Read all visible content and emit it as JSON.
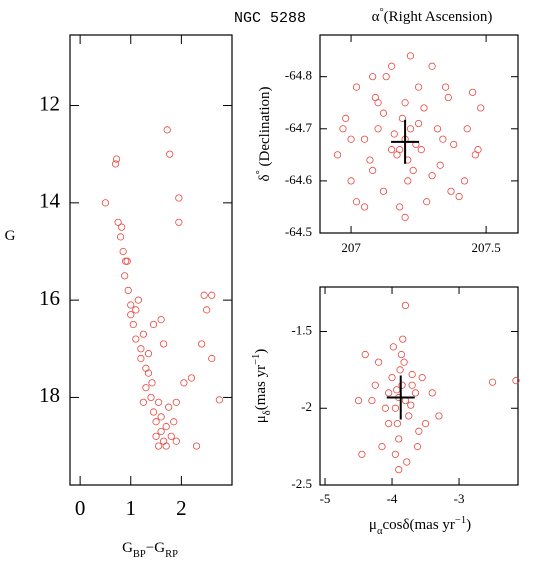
{
  "chart_data": [
    {
      "type": "scatter",
      "color": "#e8473f",
      "xlabel": [
        {
          "text": "G"
        },
        {
          "text": "BP",
          "shift": "sub"
        },
        {
          "text": "−G"
        },
        {
          "text": "RP",
          "shift": "sub"
        }
      ],
      "ylabel": [
        {
          "text": "G"
        }
      ],
      "xlim": [
        -0.2,
        3.0
      ],
      "ylim": [
        19.8,
        10.55
      ],
      "xticks": [
        0,
        1,
        2
      ],
      "yticks": [
        12,
        14,
        16,
        18
      ],
      "x": [
        0.5,
        0.7,
        0.72,
        0.75,
        0.8,
        0.82,
        0.85,
        0.88,
        0.9,
        0.93,
        0.95,
        1.0,
        1.0,
        1.05,
        1.1,
        1.1,
        1.15,
        1.2,
        1.2,
        1.25,
        1.3,
        1.3,
        1.35,
        1.4,
        1.42,
        1.45,
        1.5,
        1.5,
        1.55,
        1.55,
        1.6,
        1.6,
        1.65,
        1.7,
        1.7,
        1.75,
        1.8,
        1.85,
        1.9,
        1.45,
        1.6,
        1.72,
        1.77,
        1.95,
        1.95,
        2.45,
        2.6,
        2.5,
        2.4,
        2.2,
        2.05,
        2.6,
        2.3,
        1.65,
        1.35,
        1.25,
        1.9,
        2.75
      ],
      "values": [
        14.0,
        13.2,
        13.1,
        14.4,
        14.7,
        14.5,
        15.0,
        15.5,
        15.2,
        15.2,
        15.8,
        16.1,
        16.3,
        16.5,
        16.2,
        16.8,
        16.0,
        17.0,
        17.2,
        16.7,
        17.4,
        17.8,
        17.5,
        18.0,
        17.7,
        18.3,
        18.5,
        18.8,
        18.1,
        19.0,
        18.7,
        18.4,
        18.9,
        18.6,
        19.0,
        18.2,
        18.8,
        18.5,
        18.9,
        16.5,
        16.4,
        12.5,
        13.0,
        13.9,
        14.4,
        15.9,
        15.9,
        16.2,
        16.9,
        17.6,
        17.7,
        17.2,
        19.0,
        16.9,
        17.1,
        18.1,
        18.1,
        18.05
      ]
    },
    {
      "type": "scatter",
      "color": "#e8473f",
      "title": "NGC 5288",
      "xlabel": [
        {
          "text": "α"
        },
        {
          "text": "°",
          "shift": "super"
        },
        {
          "text": "(Right Ascension)"
        }
      ],
      "ylabel": [
        {
          "text": "δ"
        },
        {
          "text": "°",
          "shift": "super"
        },
        {
          "text": " (Declination)"
        }
      ],
      "xlim": [
        206.885,
        207.618
      ],
      "ylim": [
        -64.5,
        -64.88
      ],
      "xticks": [
        207,
        207.5
      ],
      "yticks": [
        -64.8,
        -64.7,
        -64.6,
        -64.5
      ],
      "center": {
        "x": 207.2,
        "y": -64.675
      },
      "x": [
        207.2,
        207.18,
        207.22,
        207.21,
        207.19,
        207.24,
        207.16,
        207.23,
        207.2,
        207.17,
        207.25,
        207.21,
        206.95,
        206.98,
        207.0,
        207.02,
        207.05,
        207.08,
        207.1,
        207.12,
        207.3,
        207.33,
        207.36,
        207.4,
        207.43,
        207.46,
        207.48,
        207.05,
        207.1,
        207.15,
        207.28,
        207.35,
        207.42,
        207.0,
        207.08,
        207.15,
        207.25,
        207.32,
        207.38,
        207.02,
        207.12,
        207.22,
        207.3,
        207.45,
        207.07,
        207.18,
        207.27,
        207.37,
        206.97,
        207.47,
        207.13,
        207.26,
        207.2,
        207.09,
        207.34
      ],
      "values": [
        -64.68,
        -64.66,
        -64.7,
        -64.64,
        -64.72,
        -64.67,
        -64.69,
        -64.62,
        -64.75,
        -64.65,
        -64.71,
        -64.6,
        -64.65,
        -64.72,
        -64.6,
        -64.78,
        -64.55,
        -64.8,
        -64.7,
        -64.58,
        -64.82,
        -64.63,
        -64.76,
        -64.57,
        -64.7,
        -64.65,
        -64.74,
        -64.68,
        -64.75,
        -64.82,
        -64.56,
        -64.78,
        -64.6,
        -64.68,
        -64.62,
        -64.66,
        -64.78,
        -64.7,
        -64.67,
        -64.56,
        -64.73,
        -64.84,
        -64.61,
        -64.77,
        -64.64,
        -64.55,
        -64.74,
        -64.58,
        -64.7,
        -64.66,
        -64.8,
        -64.66,
        -64.53,
        -64.76,
        -64.68
      ]
    },
    {
      "type": "scatter",
      "color": "#e8473f",
      "xlabel": [
        {
          "text": "μ"
        },
        {
          "text": "α",
          "shift": "sub"
        },
        {
          "text": "cosδ(mas yr"
        },
        {
          "text": "−1",
          "shift": "super"
        },
        {
          "text": ")"
        }
      ],
      "ylabel": [
        {
          "text": "μ"
        },
        {
          "text": "δ",
          "shift": "sub"
        },
        {
          "text": "(mas yr"
        },
        {
          "text": "−1",
          "shift": "super"
        },
        {
          "text": ")"
        }
      ],
      "xlim": [
        -5.075,
        -2.12
      ],
      "ylim": [
        -2.5,
        -1.21
      ],
      "xticks": [
        -5,
        -4,
        -3
      ],
      "yticks": [
        -1.5,
        -2,
        -2.5
      ],
      "center": {
        "x": -3.87,
        "y": -1.93
      },
      "x": [
        -3.9,
        -3.85,
        -3.95,
        -3.88,
        -3.92,
        -3.8,
        -4.0,
        -3.75,
        -4.05,
        -3.7,
        -3.9,
        -3.86,
        -4.1,
        -3.65,
        -4.2,
        -3.6,
        -3.95,
        -3.82,
        -4.15,
        -3.72,
        -4.3,
        -3.55,
        -4.4,
        -3.5,
        -3.98,
        -3.78,
        -4.25,
        -3.62,
        -3.9,
        -3.84,
        -4.5,
        -4.45,
        -3.4,
        -3.3,
        -3.8,
        -2.5,
        -2.15,
        -4.05,
        -3.7,
        -3.93
      ],
      "values": [
        -1.93,
        -1.85,
        -2.0,
        -1.75,
        -2.1,
        -1.95,
        -1.8,
        -2.05,
        -1.9,
        -1.85,
        -2.2,
        -1.65,
        -2.0,
        -1.9,
        -1.7,
        -2.15,
        -2.3,
        -1.7,
        -2.25,
        -1.98,
        -1.95,
        -1.8,
        -1.65,
        -2.1,
        -1.6,
        -2.35,
        -1.85,
        -2.25,
        -2.4,
        -1.55,
        -1.95,
        -2.3,
        -1.9,
        -2.05,
        -1.33,
        -1.83,
        -1.82,
        -2.1,
        -1.78,
        -1.88
      ]
    }
  ]
}
